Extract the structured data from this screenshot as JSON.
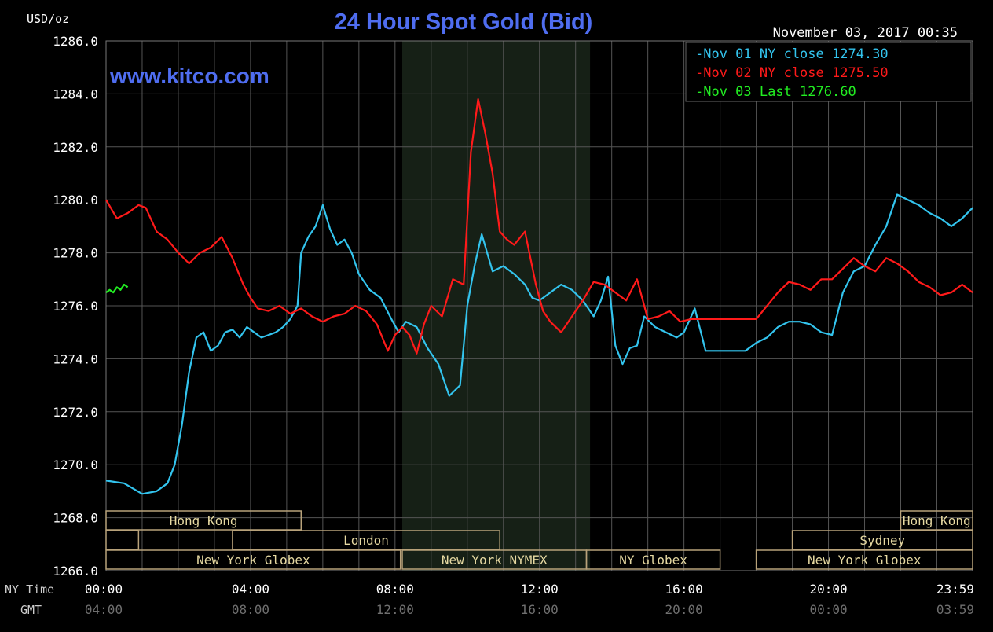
{
  "header": {
    "units": "USD/oz",
    "timestamp": "November 03, 2017 00:35",
    "website": "www.kitco.com"
  },
  "legend": [
    {
      "text": "Nov 01 NY close 1274.30",
      "color": "#33c4ee"
    },
    {
      "text": "Nov 02 NY close 1275.50",
      "color": "#ff1a1a"
    },
    {
      "text": "Nov 03 Last 1276.60",
      "color": "#22ee22"
    }
  ],
  "row_labels": {
    "ny": "NY Time",
    "gmt": "GMT"
  },
  "markets": {
    "row1": [
      {
        "label": "Hong Kong",
        "start": 0,
        "end": 5.4
      },
      {
        "label": "Hong Kong",
        "start": 22.0,
        "end": 23.99
      }
    ],
    "row2": [
      {
        "label": "",
        "start": 0,
        "end": 0.9
      },
      {
        "label": "London",
        "start": 3.5,
        "end": 10.9
      },
      {
        "label": "Sydney",
        "start": 19.0,
        "end": 23.99
      }
    ],
    "row3": [
      {
        "label": "New York Globex",
        "start": 0,
        "end": 8.15
      },
      {
        "label": "New York NYMEX",
        "start": 8.2,
        "end": 13.3
      },
      {
        "label": "NY Globex",
        "start": 13.3,
        "end": 17.0
      },
      {
        "label": "New York Globex",
        "start": 18.0,
        "end": 23.99
      }
    ]
  },
  "chart_data": {
    "type": "line",
    "title": "24 Hour Spot Gold (Bid)",
    "ylim": [
      1266,
      1286
    ],
    "yticks": [
      "1286.0",
      "1284.0",
      "1282.0",
      "1280.0",
      "1278.0",
      "1276.0",
      "1274.0",
      "1272.0",
      "1270.0",
      "1268.0",
      "1266.0"
    ],
    "xlim": [
      0,
      23.99
    ],
    "xticks_ny": [
      "00:00",
      "04:00",
      "08:00",
      "12:00",
      "16:00",
      "20:00",
      "23:59"
    ],
    "xticks_gmt": [
      "04:00",
      "08:00",
      "12:00",
      "16:00",
      "20:00",
      "00:00",
      "03:59"
    ],
    "shaded_region": [
      8.2,
      13.4
    ],
    "grid": true,
    "series": [
      {
        "name": "Nov 01 NY close 1274.30",
        "color": "#33c4ee",
        "x": [
          0,
          0.5,
          1,
          1.4,
          1.7,
          1.9,
          2.1,
          2.3,
          2.5,
          2.7,
          2.9,
          3.1,
          3.3,
          3.5,
          3.7,
          3.9,
          4.1,
          4.3,
          4.5,
          4.7,
          4.9,
          5.1,
          5.3,
          5.4,
          5.6,
          5.8,
          6.0,
          6.2,
          6.4,
          6.6,
          6.8,
          7.0,
          7.3,
          7.6,
          7.9,
          8.1,
          8.3,
          8.6,
          8.9,
          9.2,
          9.5,
          9.8,
          10.0,
          10.2,
          10.4,
          10.7,
          11.0,
          11.3,
          11.6,
          11.8,
          12.0,
          12.3,
          12.6,
          12.9,
          13.2,
          13.5,
          13.7,
          13.9,
          14.1,
          14.3,
          14.5,
          14.7,
          14.9,
          15.2,
          15.5,
          15.8,
          16.0,
          16.3,
          16.6,
          16.9,
          17.1,
          17.4,
          17.7,
          18.0,
          18.3,
          18.6,
          18.9,
          19.2,
          19.5,
          19.8,
          20.1,
          20.4,
          20.7,
          21.0,
          21.3,
          21.6,
          21.9,
          22.2,
          22.5,
          22.8,
          23.1,
          23.4,
          23.7,
          23.99
        ],
        "y": [
          1269.4,
          1269.3,
          1268.9,
          1269.0,
          1269.3,
          1270.0,
          1271.5,
          1273.5,
          1274.8,
          1275.0,
          1274.3,
          1274.5,
          1275.0,
          1275.1,
          1274.8,
          1275.2,
          1275.0,
          1274.8,
          1274.9,
          1275.0,
          1275.2,
          1275.5,
          1276.0,
          1278.0,
          1278.6,
          1279.0,
          1279.8,
          1278.9,
          1278.3,
          1278.5,
          1278.0,
          1277.2,
          1276.6,
          1276.3,
          1275.5,
          1275.0,
          1275.4,
          1275.2,
          1274.4,
          1273.8,
          1272.6,
          1273.0,
          1276.0,
          1277.5,
          1278.7,
          1277.3,
          1277.5,
          1277.2,
          1276.8,
          1276.3,
          1276.2,
          1276.5,
          1276.8,
          1276.6,
          1276.2,
          1275.6,
          1276.2,
          1277.1,
          1274.5,
          1273.8,
          1274.4,
          1274.5,
          1275.6,
          1275.2,
          1275.0,
          1274.8,
          1275.0,
          1275.9,
          1274.3,
          1274.3,
          1274.3,
          1274.3,
          1274.3,
          1274.6,
          1274.8,
          1275.2,
          1275.4,
          1275.4,
          1275.3,
          1275.0,
          1274.9,
          1276.5,
          1277.3,
          1277.5,
          1278.3,
          1279.0,
          1280.2,
          1280.0,
          1279.8,
          1279.5,
          1279.3,
          1279.0,
          1279.3,
          1279.7
        ]
      },
      {
        "name": "Nov 02 NY close 1275.50",
        "color": "#ff1a1a",
        "x": [
          0,
          0.3,
          0.6,
          0.9,
          1.1,
          1.4,
          1.7,
          2.0,
          2.3,
          2.6,
          2.9,
          3.2,
          3.5,
          3.8,
          4.0,
          4.2,
          4.5,
          4.8,
          5.1,
          5.4,
          5.7,
          6.0,
          6.3,
          6.6,
          6.9,
          7.2,
          7.5,
          7.8,
          8.0,
          8.2,
          8.4,
          8.6,
          8.8,
          9.0,
          9.3,
          9.6,
          9.9,
          10.1,
          10.3,
          10.5,
          10.7,
          10.9,
          11.1,
          11.3,
          11.6,
          11.9,
          12.1,
          12.3,
          12.6,
          12.9,
          13.2,
          13.5,
          13.8,
          14.1,
          14.4,
          14.7,
          15.0,
          15.3,
          15.6,
          15.9,
          16.2,
          16.5,
          16.8,
          17.1,
          17.4,
          17.7,
          18.0,
          18.3,
          18.6,
          18.9,
          19.2,
          19.5,
          19.8,
          20.1,
          20.4,
          20.7,
          21.0,
          21.3,
          21.6,
          21.9,
          22.2,
          22.5,
          22.8,
          23.1,
          23.4,
          23.7,
          23.99
        ],
        "y": [
          1280.0,
          1279.3,
          1279.5,
          1279.8,
          1279.7,
          1278.8,
          1278.5,
          1278.0,
          1277.6,
          1278.0,
          1278.2,
          1278.6,
          1277.8,
          1276.8,
          1276.3,
          1275.9,
          1275.8,
          1276.0,
          1275.7,
          1275.9,
          1275.6,
          1275.4,
          1275.6,
          1275.7,
          1276.0,
          1275.8,
          1275.3,
          1274.3,
          1274.9,
          1275.2,
          1274.9,
          1274.2,
          1275.3,
          1276.0,
          1275.6,
          1277.0,
          1276.8,
          1281.8,
          1283.8,
          1282.5,
          1281.0,
          1278.8,
          1278.5,
          1278.3,
          1278.8,
          1276.8,
          1275.8,
          1275.4,
          1275.0,
          1275.6,
          1276.2,
          1276.9,
          1276.8,
          1276.5,
          1276.2,
          1277.0,
          1275.5,
          1275.6,
          1275.8,
          1275.4,
          1275.5,
          1275.5,
          1275.5,
          1275.5,
          1275.5,
          1275.5,
          1275.5,
          1276.0,
          1276.5,
          1276.9,
          1276.8,
          1276.6,
          1277.0,
          1277.0,
          1277.4,
          1277.8,
          1277.5,
          1277.3,
          1277.8,
          1277.6,
          1277.3,
          1276.9,
          1276.7,
          1276.4,
          1276.5,
          1276.8,
          1276.5
        ]
      },
      {
        "name": "Nov 03 Last 1276.60",
        "color": "#22ee22",
        "x": [
          0,
          0.1,
          0.2,
          0.3,
          0.4,
          0.5,
          0.6
        ],
        "y": [
          1276.5,
          1276.6,
          1276.5,
          1276.7,
          1276.6,
          1276.8,
          1276.7
        ]
      }
    ]
  }
}
